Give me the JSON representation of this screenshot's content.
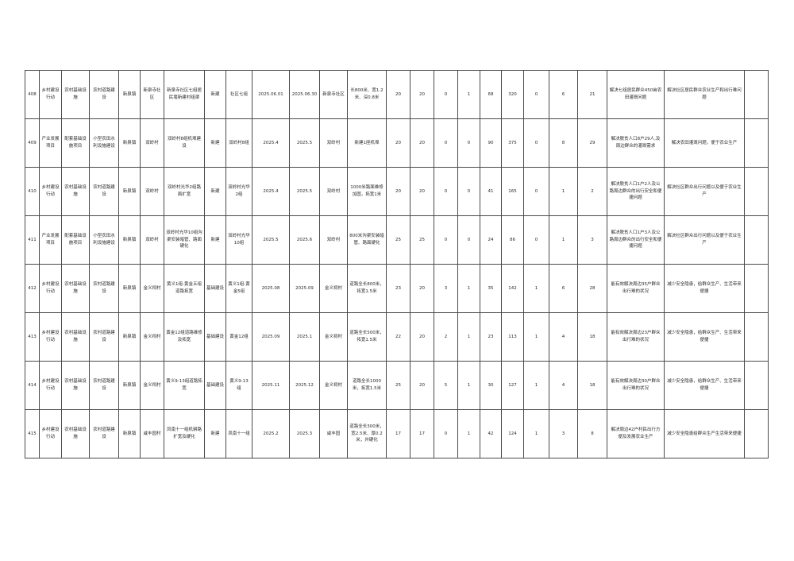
{
  "table": {
    "rows": [
      {
        "cells": [
          "408",
          "乡村建设行动",
          "农村基础设施",
          "农村道路建设",
          "新泉镇",
          "新泉寺社区",
          "新泉寺社区七组居民堰新建村组渠",
          "新建",
          "社区七组",
          "2025.06.01",
          "2025.06.30",
          "新泉寺社区",
          "长800米、宽1.2米、深0.8米",
          "20",
          "20",
          "0",
          "1",
          "68",
          "320",
          "0",
          "6",
          "21",
          "解决七组居民群众450亩农田灌溉问题",
          "解决社区居民群众农业生产和出行难问题",
          ""
        ]
      },
      {
        "cells": [
          "409",
          "产业发展项目",
          "配套基础设施项目",
          "小型农田水利设施建设",
          "新泉镇",
          "双岭村",
          "双岭村8组机埠建设",
          "新建",
          "双岭村8组",
          "2025.4",
          "2025.5",
          "双岭村",
          "新建1座机埠",
          "20",
          "20",
          "0",
          "0",
          "90",
          "375",
          "0",
          "8",
          "29",
          "解决脱贫人口8户29人,及周边群众的灌溉需求",
          "解决农田灌溉问题，便于农业生产",
          ""
        ]
      },
      {
        "cells": [
          "410",
          "乡村建设行动",
          "农村基础设施",
          "农村道路建设",
          "新泉镇",
          "双岭村",
          "双岭村光华2组路面扩宽",
          "新建",
          "双岭村光华2组",
          "2025.4",
          "2025.5",
          "双岭村",
          "1000米路面维修加固，拓宽1米",
          "20",
          "20",
          "0",
          "0",
          "41",
          "165",
          "0",
          "1",
          "2",
          "解决脱贫人口1户2人及公路周边群众的出行安全和便捷问题",
          "解决社区群众出行问题以及便于农业生产",
          ""
        ]
      },
      {
        "cells": [
          "411",
          "产业发展项目",
          "配套基础设施项目",
          "小型农田水利设施建设",
          "新泉镇",
          "双岭村",
          "双岭村光华10组沟渠安装暗管、路面硬化",
          "新建",
          "双岭村光华10组",
          "2025.5",
          "2025.6",
          "双岭村",
          "800米沟渠安装暗管、路面硬化",
          "25",
          "25",
          "0",
          "0",
          "24",
          "86",
          "0",
          "1",
          "3",
          "解决脱贫人口1户3人及公路周边群众的出行安全和便捷问题",
          "解决社区群众出行问题以及便于农业生产",
          ""
        ]
      },
      {
        "cells": [
          "412",
          "乡村建设行动",
          "农村基础设施",
          "农村道路建设",
          "新泉镇",
          "金义祠村",
          "黄义1组-黄金五组道路拓宽",
          "基础建设",
          "黄义1组-黄金5组",
          "2025.08",
          "2025.09",
          "金义祠村",
          "道路全长800米，拓宽1.5米",
          "23",
          "20",
          "3",
          "1",
          "35",
          "142",
          "1",
          "6",
          "28",
          "能有效解决周边35户群众出行难的状况",
          "减少安全隐患，给群众生产、生活带来便捷",
          ""
        ]
      },
      {
        "cells": [
          "413",
          "乡村建设行动",
          "农村基础设施",
          "农村道路建设",
          "新泉镇",
          "金义祠村",
          "黄金12组道路维修及拓宽",
          "基础建设",
          "黄金12组",
          "2025.09",
          "2025.1",
          "金义祠村",
          "道路全长500米，拓宽1.5米",
          "22",
          "20",
          "2",
          "1",
          "23",
          "113",
          "1",
          "4",
          "18",
          "能有效解决周边23户群众出行难的状况",
          "减少安全隐患，给群众生产、生活带来便捷",
          ""
        ]
      },
      {
        "cells": [
          "414",
          "乡村建设行动",
          "农村基础设施",
          "农村道路建设",
          "新泉镇",
          "金义祠村",
          "黄义9-13组道路拓宽",
          "基础建设",
          "黄义9-13组",
          "2025.11",
          "2025.12",
          "金义祠村",
          "道路全长1000米，拓宽1.5米",
          "25",
          "20",
          "5",
          "1",
          "30",
          "127",
          "1",
          "4",
          "18",
          "能有效解决周边30户群众出行难的状况",
          "减少安全隐患，给群众生产、生活带来便捷",
          ""
        ]
      },
      {
        "cells": [
          "415",
          "乡村建设行动",
          "农村基础设施",
          "农村道路建设",
          "新泉镇",
          "咸丰园村",
          "凤南十一组机耕路扩宽及硬化",
          "新建",
          "凤南十一组",
          "2025.2",
          "2025.3",
          "咸丰园",
          "道路全长300米，宽2.5米、厚0.2米，并硬化",
          "17",
          "17",
          "0",
          "1",
          "42",
          "124",
          "1",
          "3",
          "8",
          "解决周边42户村民出行方便及发展农业生产",
          "减少安全隐患给群众生产生活带来便捷",
          ""
        ]
      }
    ]
  }
}
